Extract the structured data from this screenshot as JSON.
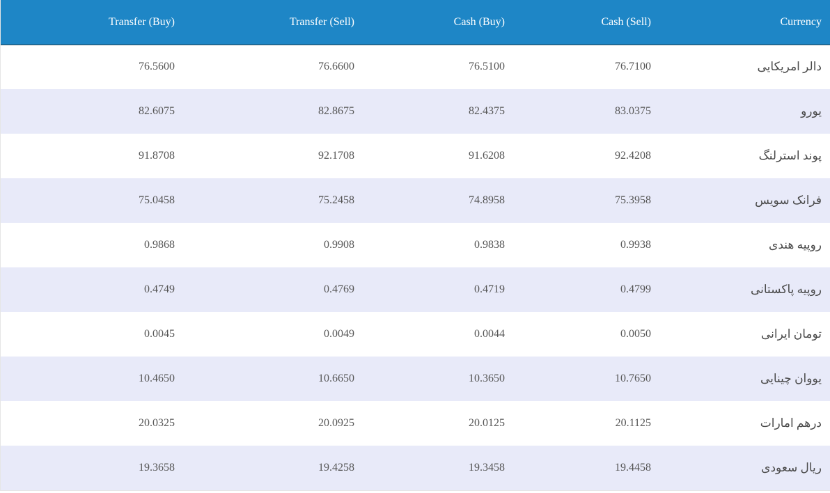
{
  "table": {
    "headers": {
      "transfer_buy": "Transfer (Buy)",
      "transfer_sell": "Transfer (Sell)",
      "cash_buy": "Cash (Buy)",
      "cash_sell": "Cash (Sell)",
      "currency": "Currency"
    },
    "colors": {
      "header_bg": "#1e86c6",
      "header_text": "#ffffff",
      "row_alt_bg": "#e8eaf9",
      "row_bg": "#ffffff",
      "cell_text": "#555555"
    },
    "rows": [
      {
        "transfer_buy": "76.5600",
        "transfer_sell": "76.6600",
        "cash_buy": "76.5100",
        "cash_sell": "76.7100",
        "currency": "دالر امریکایی"
      },
      {
        "transfer_buy": "82.6075",
        "transfer_sell": "82.8675",
        "cash_buy": "82.4375",
        "cash_sell": "83.0375",
        "currency": "یورو"
      },
      {
        "transfer_buy": "91.8708",
        "transfer_sell": "92.1708",
        "cash_buy": "91.6208",
        "cash_sell": "92.4208",
        "currency": "پوند استرلنگ"
      },
      {
        "transfer_buy": "75.0458",
        "transfer_sell": "75.2458",
        "cash_buy": "74.8958",
        "cash_sell": "75.3958",
        "currency": "فرانک سویس"
      },
      {
        "transfer_buy": "0.9868",
        "transfer_sell": "0.9908",
        "cash_buy": "0.9838",
        "cash_sell": "0.9938",
        "currency": "روپیه هندی"
      },
      {
        "transfer_buy": "0.4749",
        "transfer_sell": "0.4769",
        "cash_buy": "0.4719",
        "cash_sell": "0.4799",
        "currency": "روپیه پاکستانی"
      },
      {
        "transfer_buy": "0.0045",
        "transfer_sell": "0.0049",
        "cash_buy": "0.0044",
        "cash_sell": "0.0050",
        "currency": "تومان ایرانی"
      },
      {
        "transfer_buy": "10.4650",
        "transfer_sell": "10.6650",
        "cash_buy": "10.3650",
        "cash_sell": "10.7650",
        "currency": "یووان چینایی"
      },
      {
        "transfer_buy": "20.0325",
        "transfer_sell": "20.0925",
        "cash_buy": "20.0125",
        "cash_sell": "20.1125",
        "currency": "درهم امارات"
      },
      {
        "transfer_buy": "19.3658",
        "transfer_sell": "19.4258",
        "cash_buy": "19.3458",
        "cash_sell": "19.4458",
        "currency": "ریال سعودی"
      }
    ]
  }
}
